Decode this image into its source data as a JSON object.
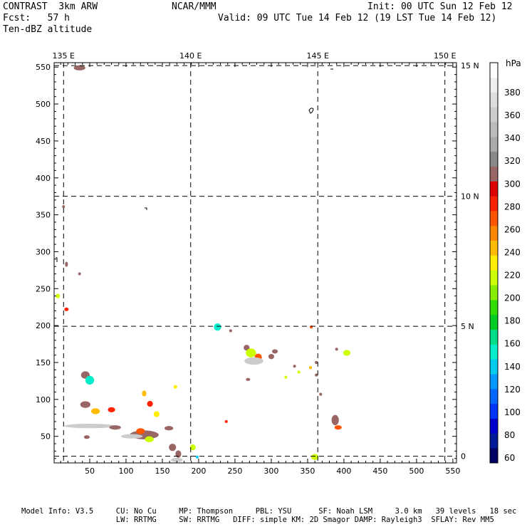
{
  "header": {
    "model_line": "CONTRAST  3km ARW",
    "forecast_line": "Fcst:   57 h",
    "field_line": "Ten-dBZ altitude",
    "center_label": "NCAR/MMM",
    "init_line": "Init: 00 UTC Sun 12 Feb 12",
    "valid_line": "Valid: 09 UTC Tue 14 Feb 12 (19 LST Tue 14 Feb 12)"
  },
  "chart_data": {
    "type": "heatmap",
    "title": "Ten-dBZ altitude",
    "x_grid_range": [
      1,
      555
    ],
    "y_grid_range": [
      14,
      556
    ],
    "x_ticks": [
      50,
      100,
      150,
      200,
      250,
      300,
      350,
      400,
      450,
      500,
      550
    ],
    "y_ticks": [
      50,
      100,
      150,
      200,
      250,
      300,
      350,
      400,
      450,
      500,
      550
    ],
    "longitude_lines": [
      {
        "label": "135 E",
        "x": 14
      },
      {
        "label": "140 E",
        "x": 189
      },
      {
        "label": "145 E",
        "x": 364
      },
      {
        "label": "150 E",
        "x": 539
      }
    ],
    "latitude_lines": [
      {
        "label": "15 N",
        "y": 552
      },
      {
        "label": "10 N",
        "y": 375
      },
      {
        "label": "5 N",
        "y": 199
      },
      {
        "label": "0",
        "y": 23
      }
    ],
    "colorbar": {
      "unit": "hPa",
      "labels": [
        "380",
        "360",
        "340",
        "320",
        "300",
        "280",
        "260",
        "240",
        "220",
        "200",
        "180",
        "160",
        "140",
        "120",
        "100",
        "80",
        "60"
      ],
      "colors": [
        "#000066",
        "#001a99",
        "#0000cc",
        "#0033ff",
        "#0066ff",
        "#0099ff",
        "#00ccee",
        "#00eecc",
        "#00dd88",
        "#00cc22",
        "#33dd00",
        "#88ee00",
        "#ccff00",
        "#ffee00",
        "#ffbb00",
        "#ff8800",
        "#ff5500",
        "#ff2200",
        "#dd0000",
        "#996666",
        "#888888",
        "#aaaaaa",
        "#bbbbbb",
        "#cccccc",
        "#dddddd",
        "#eeeeee",
        "#ffffff"
      ]
    },
    "echoes": [
      {
        "x": 36,
        "y": 549,
        "w": 16,
        "h": 7,
        "v": 300
      },
      {
        "x": 14,
        "y": 361,
        "w": 3,
        "h": 4,
        "v": 300
      },
      {
        "x": 18,
        "y": 283,
        "w": 4,
        "h": 7,
        "v": 300
      },
      {
        "x": 36,
        "y": 270,
        "w": 3,
        "h": 3,
        "v": 300
      },
      {
        "x": 6,
        "y": 240,
        "w": 6,
        "h": 6,
        "v": 200
      },
      {
        "x": 18,
        "y": 222,
        "w": 6,
        "h": 5,
        "v": 280
      },
      {
        "x": 44,
        "y": 133,
        "w": 12,
        "h": 10,
        "v": 300
      },
      {
        "x": 50,
        "y": 126,
        "w": 12,
        "h": 12,
        "v": 140
      },
      {
        "x": 44,
        "y": 93,
        "w": 14,
        "h": 9,
        "v": 300
      },
      {
        "x": 58,
        "y": 84,
        "w": 12,
        "h": 8,
        "v": 240
      },
      {
        "x": 80,
        "y": 86,
        "w": 10,
        "h": 7,
        "v": 280
      },
      {
        "x": 50,
        "y": 64,
        "w": 70,
        "h": 6,
        "v": 360
      },
      {
        "x": 85,
        "y": 62,
        "w": 16,
        "h": 6,
        "v": 300
      },
      {
        "x": 125,
        "y": 52,
        "w": 40,
        "h": 12,
        "v": 300
      },
      {
        "x": 132,
        "y": 46,
        "w": 12,
        "h": 8,
        "v": 200
      },
      {
        "x": 120,
        "y": 57,
        "w": 12,
        "h": 8,
        "v": 260
      },
      {
        "x": 108,
        "y": 50,
        "w": 30,
        "h": 6,
        "v": 360
      },
      {
        "x": 46,
        "y": 49,
        "w": 8,
        "h": 5,
        "v": 300
      },
      {
        "x": 125,
        "y": 108,
        "w": 6,
        "h": 8,
        "v": 240
      },
      {
        "x": 133,
        "y": 94,
        "w": 8,
        "h": 8,
        "v": 280
      },
      {
        "x": 142,
        "y": 80,
        "w": 8,
        "h": 8,
        "v": 220
      },
      {
        "x": 168,
        "y": 117,
        "w": 5,
        "h": 5,
        "v": 220
      },
      {
        "x": 159,
        "y": 61,
        "w": 12,
        "h": 6,
        "v": 300
      },
      {
        "x": 164,
        "y": 35,
        "w": 10,
        "h": 10,
        "v": 300
      },
      {
        "x": 172,
        "y": 26,
        "w": 8,
        "h": 10,
        "v": 300
      },
      {
        "x": 170,
        "y": 18,
        "w": 16,
        "h": 6,
        "v": 360
      },
      {
        "x": 192,
        "y": 35,
        "w": 8,
        "h": 8,
        "v": 200
      },
      {
        "x": 198,
        "y": 22,
        "w": 4,
        "h": 4,
        "v": 120
      },
      {
        "x": 226,
        "y": 198,
        "w": 10,
        "h": 10,
        "v": 140
      },
      {
        "x": 244,
        "y": 193,
        "w": 4,
        "h": 4,
        "v": 300
      },
      {
        "x": 238,
        "y": 70,
        "w": 4,
        "h": 4,
        "v": 280
      },
      {
        "x": 266,
        "y": 170,
        "w": 8,
        "h": 8,
        "v": 300
      },
      {
        "x": 272,
        "y": 163,
        "w": 14,
        "h": 12,
        "v": 200
      },
      {
        "x": 282,
        "y": 157,
        "w": 10,
        "h": 10,
        "v": 260
      },
      {
        "x": 276,
        "y": 152,
        "w": 26,
        "h": 10,
        "v": 360
      },
      {
        "x": 300,
        "y": 158,
        "w": 8,
        "h": 7,
        "v": 300
      },
      {
        "x": 305,
        "y": 165,
        "w": 8,
        "h": 6,
        "v": 300
      },
      {
        "x": 268,
        "y": 127,
        "w": 6,
        "h": 4,
        "v": 300
      },
      {
        "x": 320,
        "y": 130,
        "w": 4,
        "h": 4,
        "v": 200
      },
      {
        "x": 332,
        "y": 145,
        "w": 4,
        "h": 4,
        "v": 300
      },
      {
        "x": 338,
        "y": 137,
        "w": 4,
        "h": 4,
        "v": 200
      },
      {
        "x": 354,
        "y": 143,
        "w": 4,
        "h": 4,
        "v": 240
      },
      {
        "x": 355,
        "y": 198,
        "w": 4,
        "h": 4,
        "v": 260
      },
      {
        "x": 362,
        "y": 150,
        "w": 4,
        "h": 4,
        "v": 300
      },
      {
        "x": 362,
        "y": 133,
        "w": 4,
        "h": 4,
        "v": 300
      },
      {
        "x": 390,
        "y": 168,
        "w": 4,
        "h": 4,
        "v": 300
      },
      {
        "x": 404,
        "y": 163,
        "w": 10,
        "h": 8,
        "v": 200
      },
      {
        "x": 368,
        "y": 107,
        "w": 4,
        "h": 4,
        "v": 300
      },
      {
        "x": 388,
        "y": 72,
        "w": 10,
        "h": 14,
        "v": 300
      },
      {
        "x": 392,
        "y": 62,
        "w": 10,
        "h": 6,
        "v": 260
      },
      {
        "x": 360,
        "y": 22,
        "w": 10,
        "h": 8,
        "v": 200
      }
    ]
  },
  "footer": {
    "line1": "Model Info: V3.5     CU: No Cu     MP: Thompson     PBL: YSU      SF: Noah LSM     3.0 km   39 levels   18 sec",
    "line2": "                     LW: RRTMG     SW: RRTMG   DIFF: simple KM: 2D Smagor DAMP: Rayleigh3  SFLAY: Rev MM5"
  }
}
